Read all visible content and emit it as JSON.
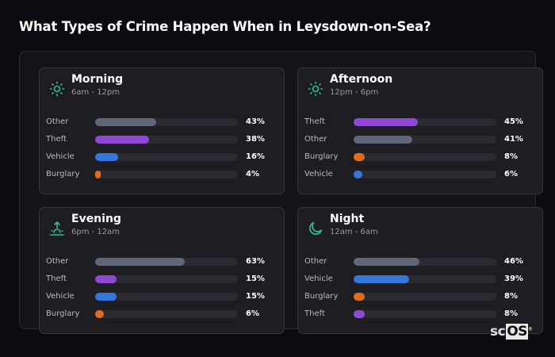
{
  "title": "What Types of Crime Happen When in Leysdown-on-Sea?",
  "colors": {
    "Other": "#5f6778",
    "Theft": "#9049d6",
    "Vehicle": "#3576db",
    "Burglary": "#e06a1e",
    "icon": "#2ec08e"
  },
  "chart_data": {
    "type": "bar",
    "orientation": "horizontal",
    "unit": "%",
    "xlim": [
      0,
      100
    ],
    "panels": [
      {
        "title": "Morning",
        "subtitle": "6am - 12pm",
        "icon": "sun-icon",
        "categories": [
          "Other",
          "Theft",
          "Vehicle",
          "Burglary"
        ],
        "values": [
          43,
          38,
          16,
          4
        ],
        "labels": [
          "43%",
          "38%",
          "16%",
          "4%"
        ]
      },
      {
        "title": "Afternoon",
        "subtitle": "12pm - 6pm",
        "icon": "sun-icon",
        "categories": [
          "Theft",
          "Other",
          "Burglary",
          "Vehicle"
        ],
        "values": [
          45,
          41,
          8,
          6
        ],
        "labels": [
          "45%",
          "41%",
          "8%",
          "6%"
        ]
      },
      {
        "title": "Evening",
        "subtitle": "6pm - 12am",
        "icon": "sunset-icon",
        "categories": [
          "Other",
          "Theft",
          "Vehicle",
          "Burglary"
        ],
        "values": [
          63,
          15,
          15,
          6
        ],
        "labels": [
          "63%",
          "15%",
          "15%",
          "6%"
        ]
      },
      {
        "title": "Night",
        "subtitle": "12am - 6am",
        "icon": "moon-icon",
        "categories": [
          "Other",
          "Vehicle",
          "Burglary",
          "Theft"
        ],
        "values": [
          46,
          39,
          8,
          8
        ],
        "labels": [
          "46%",
          "39%",
          "8%",
          "8%"
        ]
      }
    ]
  },
  "logo": {
    "text_a": "sc",
    "text_b": "OS",
    "mark": "®"
  }
}
